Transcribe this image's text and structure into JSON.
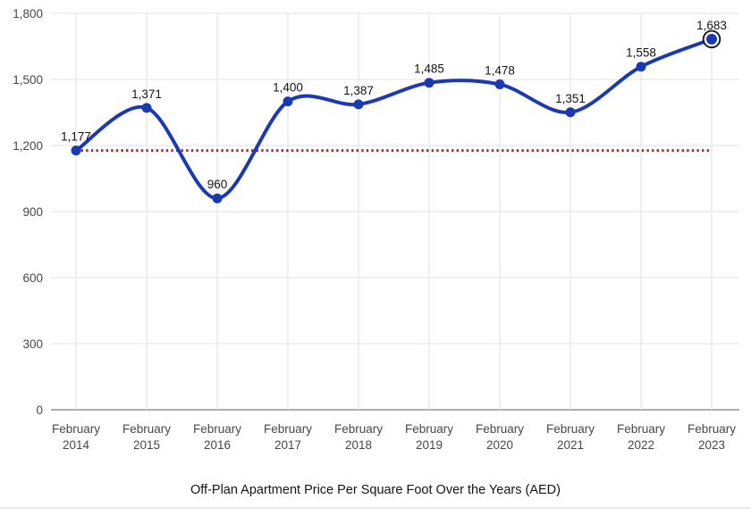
{
  "chart_data": {
    "type": "line",
    "title": "Off-Plan Apartment Price Per Square Foot Over the Years (AED)",
    "categories": [
      "February 2014",
      "February 2015",
      "February 2016",
      "February 2017",
      "February 2018",
      "February 2019",
      "February 2020",
      "February 2021",
      "February 2022",
      "February 2023"
    ],
    "values": [
      1177,
      1371,
      960,
      1400,
      1387,
      1485,
      1478,
      1351,
      1558,
      1683
    ],
    "value_labels": [
      "1,177",
      "1,371",
      "960",
      "1,400",
      "1,387",
      "1,485",
      "1,478",
      "1,351",
      "1,558",
      "1,683"
    ],
    "y_ticks": [
      0,
      300,
      600,
      900,
      1200,
      1500,
      1800
    ],
    "y_tick_labels": [
      "0",
      "300",
      "600",
      "900",
      "1,200",
      "1,500",
      "1,800"
    ],
    "ylim": [
      0,
      1800
    ],
    "grid": true,
    "legend": "none",
    "reference_line": {
      "value": 1177,
      "style": "dotted"
    },
    "highlighted_point_index": 9,
    "colors": {
      "line": "#1c39b4",
      "marker": "#1c39b4",
      "reference": "#b12730",
      "grid": "#e5e7ea",
      "axis": "#919398",
      "tick_label": "#48484a",
      "value_label": "#141414",
      "title": "#141414",
      "highlight_ring": "#17181a",
      "divider": "#e9e9ec",
      "background": "#ffffff"
    }
  }
}
